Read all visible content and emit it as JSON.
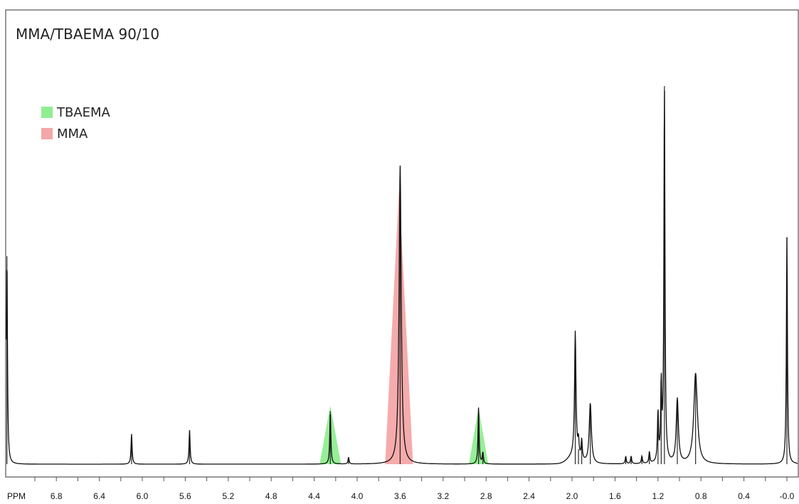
{
  "chart_data": {
    "type": "line",
    "title": "MMA/TBAEMA 90/10",
    "xlabel": "PPM",
    "ylabel": "",
    "xlim": [
      7.1,
      -0.05
    ],
    "x_reversed": true,
    "grid": false,
    "legend_placement": "upper-left",
    "x_ticks": [
      "6.8",
      "6.4",
      "6.0",
      "5.6",
      "5.2",
      "4.8",
      "4.4",
      "4.0",
      "3.6",
      "3.2",
      "2.8",
      "2.4",
      "2.0",
      "1.6",
      "1.2",
      "0.8",
      "0.4",
      "-0.0"
    ],
    "legend": [
      {
        "name": "TBAEMA",
        "color": "#90EE90"
      },
      {
        "name": "MMA",
        "color": "#F4A7A7"
      }
    ],
    "peaks": [
      {
        "ppm": 7.26,
        "height": 0.55
      },
      {
        "ppm": 6.1,
        "height": 0.08
      },
      {
        "ppm": 5.56,
        "height": 0.09
      },
      {
        "ppm": 4.25,
        "height": 0.14
      },
      {
        "ppm": 4.08,
        "height": 0.018
      },
      {
        "ppm": 3.6,
        "height": 0.79
      },
      {
        "ppm": 2.87,
        "height": 0.15
      },
      {
        "ppm": 2.83,
        "height": 0.03
      },
      {
        "ppm": 1.97,
        "height": 0.33
      },
      {
        "ppm": 1.94,
        "height": 0.04
      },
      {
        "ppm": 1.91,
        "height": 0.05
      },
      {
        "ppm": 1.83,
        "height": 0.16
      },
      {
        "ppm": 1.5,
        "height": 0.02
      },
      {
        "ppm": 1.45,
        "height": 0.02
      },
      {
        "ppm": 1.35,
        "height": 0.02
      },
      {
        "ppm": 1.28,
        "height": 0.03
      },
      {
        "ppm": 1.2,
        "height": 0.13
      },
      {
        "ppm": 1.17,
        "height": 0.2
      },
      {
        "ppm": 1.14,
        "height": 1.0
      },
      {
        "ppm": 1.02,
        "height": 0.17
      },
      {
        "ppm": 0.85,
        "height": 0.24
      },
      {
        "ppm": 0.0,
        "height": 0.6
      }
    ],
    "shaded_regions": [
      {
        "series": "TBAEMA",
        "center": 4.25,
        "half_width": 0.1,
        "height": 0.155
      },
      {
        "series": "MMA",
        "center": 3.61,
        "half_width": 0.13,
        "height": 0.73
      },
      {
        "series": "TBAEMA",
        "center": 2.87,
        "half_width": 0.09,
        "height": 0.15
      }
    ]
  }
}
